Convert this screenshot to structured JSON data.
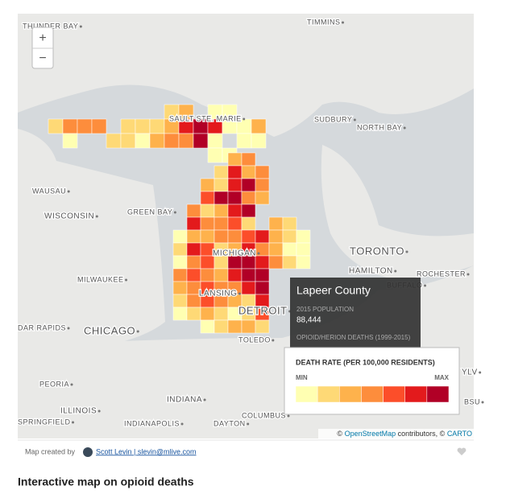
{
  "map": {
    "zoom_in": "+",
    "zoom_out": "−",
    "labels": [
      "THUNDER BAY",
      "TIMMINS",
      "SAULT STE. MARIE",
      "SUDBURY",
      "NORTH BAY",
      "WAUSAU",
      "GREEN BAY",
      "WISCONSIN",
      "MICHIGAN",
      "TORONTO",
      "HAMILTON",
      "ROCHESTER",
      "MILWAUKEE",
      "LANSING",
      "DETROIT",
      "BUFFALO",
      "CHICAGO",
      "DAR RAPIDS",
      "TOLEDO",
      "PEORIA",
      "INDIANA",
      "ILLINOIS",
      "COLUMBUS",
      "SPRINGFIELD",
      "INDIANAPOLIS",
      "DAYTON",
      "YLV",
      "BSU"
    ],
    "tooltip": {
      "title": "Lapeer County",
      "population_label": "2015 POPULATION",
      "population": "88,444",
      "deaths_label": "OPIOID/HERION DEATHS (1999-2015)"
    },
    "legend": {
      "title": "DEATH RATE (PER 100,000 RESIDENTS)",
      "min": "MIN",
      "max": "MAX",
      "colors": [
        "#ffffb2",
        "#fed976",
        "#feb24c",
        "#fd8d3c",
        "#fc4e2a",
        "#e31a1c",
        "#b10026"
      ]
    },
    "attribution": {
      "prefix": "©",
      "osm": "OpenStreetMap",
      "mid": "contributors, ©",
      "carto": "CARTO"
    }
  },
  "footer": {
    "created_by": "Map created by",
    "author": "Scott Levin | slevin@mlive.com"
  },
  "heading": "Interactive map on opioid deaths"
}
